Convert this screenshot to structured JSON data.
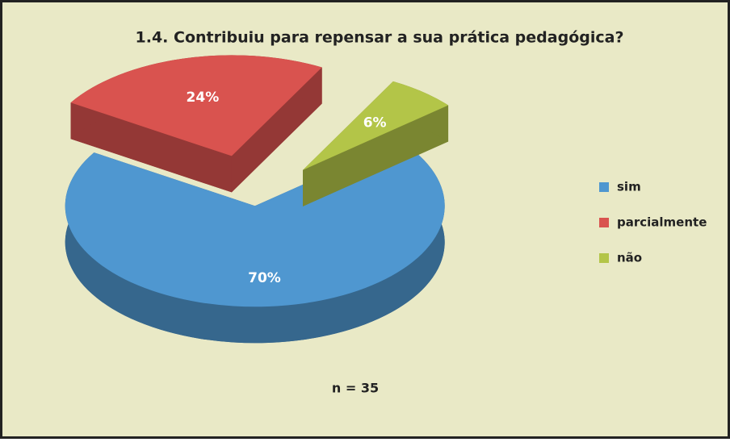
{
  "chart_data": {
    "type": "pie",
    "title": "1.4. Contribuiu para repensar a sua prática pedagógica?",
    "categories": [
      "sim",
      "parcialmente",
      "não"
    ],
    "values": [
      70,
      24,
      6
    ],
    "value_labels": [
      "70%",
      "24%",
      "6%"
    ],
    "colors": [
      "#4f97d0",
      "#d9534f",
      "#b3c548"
    ],
    "legend": "right",
    "annotation": "n = 35"
  }
}
